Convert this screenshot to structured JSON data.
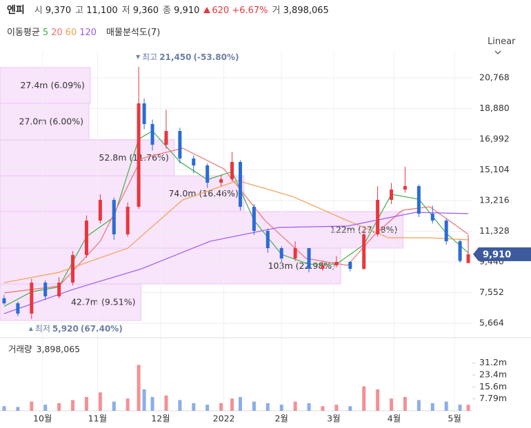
{
  "header": {
    "name": "엔피",
    "open_label": "시",
    "open": "9,370",
    "high_label": "고",
    "high": "11,100",
    "low_label": "저",
    "low": "9,360",
    "close_label": "종",
    "close": "9,910",
    "change": "620",
    "change_pct": "+6.67%",
    "volume_label": "거",
    "volume": "3,898,065"
  },
  "chart_data": {
    "type": "candlestick",
    "scale": "Linear",
    "up_color": "#e8373d",
    "down_color": "#2b6bd6",
    "x": [
      0,
      5,
      10,
      15,
      20,
      25,
      30,
      35,
      40,
      45,
      49,
      51,
      54,
      59,
      64,
      69,
      74,
      79,
      83,
      86,
      91,
      96,
      101,
      106,
      111,
      116,
      121,
      126,
      131,
      136,
      141,
      146,
      151,
      156,
      161,
      166,
      169
    ],
    "open": [
      7200,
      6893,
      6257,
      8166,
      7318,
      8166,
      9864,
      11985,
      13258,
      11137,
      12834,
      19198,
      17925,
      16652,
      17500,
      15803,
      15379,
      14318,
      14531,
      15591,
      12834,
      11349,
      10288,
      9652,
      10288,
      9015,
      9227,
      9440,
      9015,
      11137,
      13258,
      13895,
      14106,
      12410,
      11985,
      10712,
      9370
    ],
    "high": [
      7400,
      7000,
      8400,
      8300,
      8500,
      10100,
      12300,
      13600,
      13400,
      13100,
      21450,
      19500,
      18200,
      18800,
      17700,
      16000,
      15500,
      14800,
      16200,
      15700,
      13000,
      11500,
      10400,
      10700,
      10300,
      9500,
      9800,
      9500,
      11400,
      14100,
      14300,
      15300,
      14200,
      12900,
      12100,
      10800,
      11100
    ],
    "low": [
      6800,
      6100,
      5920,
      7100,
      7200,
      8000,
      9700,
      11800,
      10800,
      11000,
      12700,
      17600,
      16300,
      16400,
      15500,
      14900,
      14000,
      14100,
      14400,
      12600,
      11100,
      10000,
      9400,
      9500,
      8800,
      8900,
      9100,
      8850,
      8950,
      11000,
      13000,
      13700,
      12200,
      11800,
      10500,
      9400,
      9360
    ],
    "close": [
      6893,
      6257,
      8166,
      7318,
      8166,
      9864,
      11985,
      13258,
      11137,
      12834,
      19198,
      17925,
      16652,
      17500,
      15803,
      15379,
      14318,
      14531,
      15591,
      12834,
      11349,
      10288,
      9652,
      10288,
      9015,
      9227,
      9440,
      9015,
      11137,
      13258,
      13895,
      14106,
      12410,
      11985,
      10712,
      9500,
      9910
    ],
    "volume": [
      3000000,
      2500000,
      6000000,
      4000000,
      5000000,
      7000000,
      9000000,
      12000000,
      6000000,
      8000000,
      30000000,
      14000000,
      9000000,
      10000000,
      7000000,
      5000000,
      4000000,
      5000000,
      8000000,
      9000000,
      6000000,
      5000000,
      4000000,
      6000000,
      5000000,
      3000000,
      4000000,
      3000000,
      16000000,
      14000000,
      8000000,
      9000000,
      7000000,
      5000000,
      6000000,
      4000000,
      3898065
    ],
    "xlim": [
      -1.5,
      170.5
    ],
    "xticks": [
      {
        "value": 14,
        "label": "10월"
      },
      {
        "value": 34,
        "label": "11월"
      },
      {
        "value": 57,
        "label": "12월"
      },
      {
        "value": 80,
        "label": "2022"
      },
      {
        "value": 101,
        "label": "2월"
      },
      {
        "value": 120,
        "label": "3월"
      },
      {
        "value": 142,
        "label": "4월"
      },
      {
        "value": 164,
        "label": "5월"
      }
    ],
    "ylim": [
      4773,
      21829
    ],
    "yticks": [
      {
        "value": 5664,
        "label": "5,664"
      },
      {
        "value": 7552,
        "label": "7,552"
      },
      {
        "value": 9440,
        "label": "9,440"
      },
      {
        "value": 11328,
        "label": "11,328"
      },
      {
        "value": 13216,
        "label": "13,216"
      },
      {
        "value": 15104,
        "label": "15,104"
      },
      {
        "value": 16992,
        "label": "16,992"
      },
      {
        "value": 18880,
        "label": "18,880"
      },
      {
        "value": 20768,
        "label": "20,768"
      }
    ],
    "grid": true,
    "ma_title": "이동평균",
    "moving_averages": [
      {
        "name": "5",
        "color": "#3fae49",
        "x": [
          0,
          10,
          20,
          30,
          40,
          49,
          54,
          64,
          74,
          83,
          91,
          101,
          111,
          121,
          131,
          141,
          151,
          161,
          169
        ],
        "values": [
          6700,
          7600,
          7900,
          11000,
          12200,
          17000,
          17500,
          15600,
          14500,
          15000,
          12000,
          9900,
          9300,
          9300,
          10500,
          13600,
          13300,
          11200,
          10000
        ]
      },
      {
        "name": "20",
        "color": "#f07070",
        "x": [
          0,
          20,
          35,
          50,
          65,
          80,
          95,
          110,
          125,
          135,
          145,
          155,
          169
        ],
        "values": [
          7530,
          7954,
          10712,
          15803,
          16440,
          15167,
          11985,
          9652,
          9227,
          11137,
          12622,
          12834,
          11137
        ]
      },
      {
        "name": "60",
        "color": "#f0a050",
        "x": [
          0,
          20,
          45,
          65,
          85,
          105,
          125,
          140,
          155,
          169
        ],
        "values": [
          8166,
          8799,
          10288,
          13258,
          14446,
          13470,
          11985,
          10924,
          10924,
          10797
        ]
      },
      {
        "name": "120",
        "color": "#9b59f0",
        "x": [
          0,
          25,
          50,
          75,
          100,
          125,
          150,
          169
        ],
        "values": [
          6257,
          7742,
          9015,
          10712,
          11561,
          11646,
          12494,
          12410
        ]
      }
    ],
    "profile": {
      "title": "매물분석도(7)",
      "color": "#f8e4fb",
      "bands": [
        {
          "low": 5833,
          "high": 8081,
          "volume": 42700000,
          "volume_label": "42.7m",
          "share": 9.51,
          "share_label": "(9.51%)"
        },
        {
          "low": 8081,
          "high": 10288,
          "volume": 103000000,
          "volume_label": "103m",
          "share": 22.98,
          "share_label": "(22.98%)"
        },
        {
          "low": 10288,
          "high": 12537,
          "volume": 122000000,
          "volume_label": "122m",
          "share": 27.18,
          "share_label": "(27.18%)"
        },
        {
          "low": 12537,
          "high": 14743,
          "volume": 74000000,
          "volume_label": "74.0m",
          "share": 16.46,
          "share_label": "(16.46%)"
        },
        {
          "low": 14743,
          "high": 16949,
          "volume": 52800000,
          "volume_label": "52.8m",
          "share": 11.76,
          "share_label": "(11.76%)"
        },
        {
          "low": 16949,
          "high": 19198,
          "volume": 27000000,
          "volume_label": "27.0m",
          "share": 6.0,
          "share_label": "(6.00%)"
        },
        {
          "low": 19198,
          "high": 21404,
          "volume": 27400000,
          "volume_label": "27.4m",
          "share": 6.09,
          "share_label": "(6.09%)"
        }
      ]
    },
    "high_note": {
      "label": "최고",
      "x": 49,
      "value": 21450,
      "value_label": "21,450",
      "change": "(-53.80%)"
    },
    "low_note": {
      "label": "최저",
      "x": 10,
      "value": 5920,
      "value_label": "5,920",
      "change": "(67.40%)"
    },
    "last_price": {
      "value": 9910,
      "label": "9,910"
    },
    "volume_panel": {
      "title": "거래량",
      "total_label": "3,898,065",
      "ylim": [
        0,
        45500000
      ],
      "yticks": [
        {
          "value": 7790000,
          "label": "7.79m"
        },
        {
          "value": 15600000,
          "label": "15.6m"
        },
        {
          "value": 23400000,
          "label": "23.4m"
        },
        {
          "value": 31200000,
          "label": "31.2m"
        }
      ]
    }
  }
}
